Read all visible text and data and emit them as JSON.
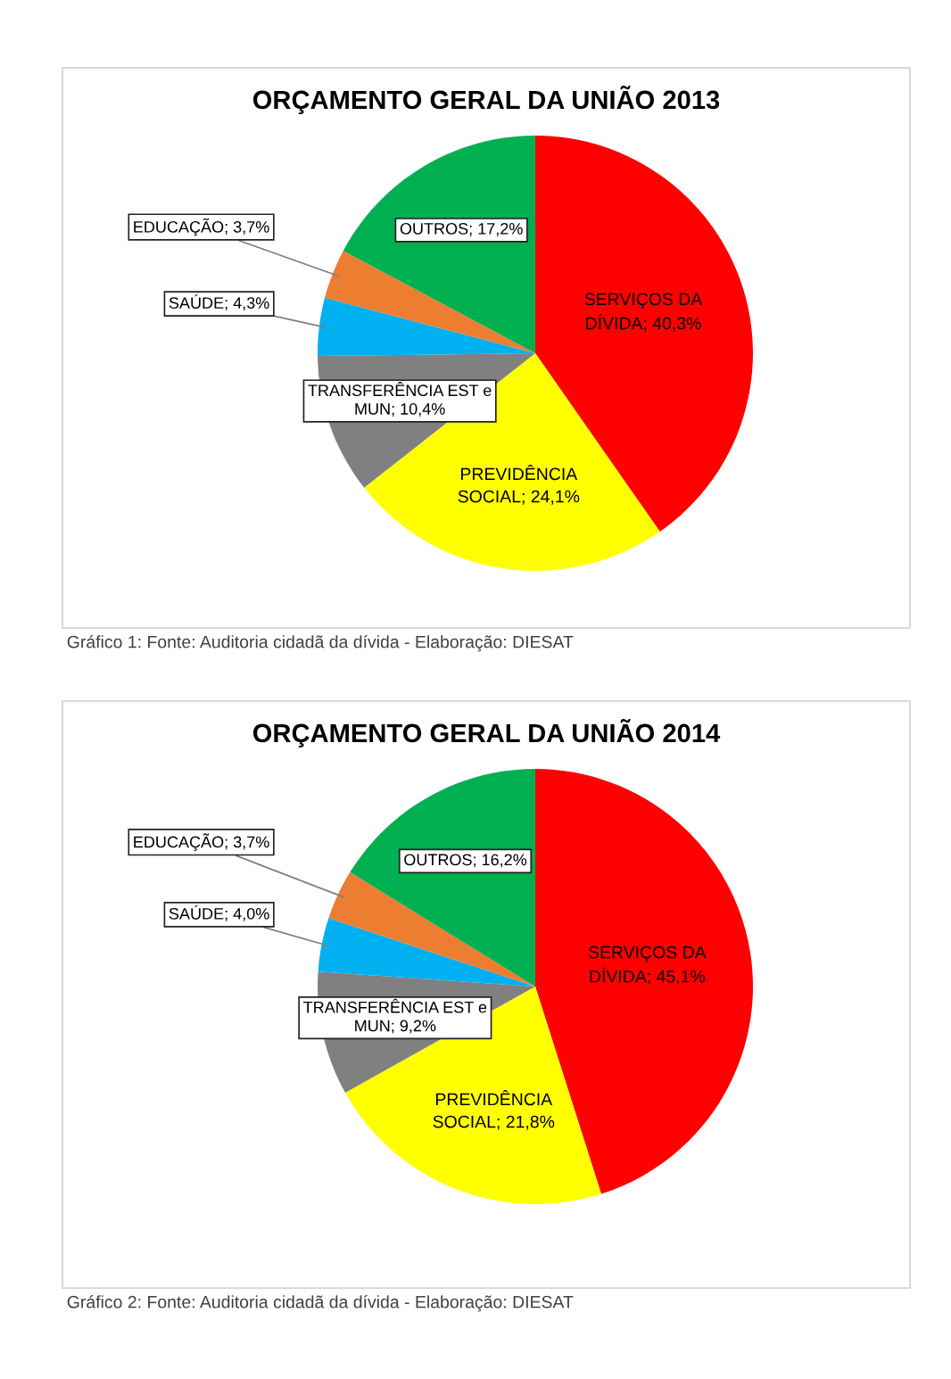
{
  "chart_data": [
    {
      "type": "pie",
      "title": "ORÇAMENTO GERAL DA UNIÃO 2013",
      "categories": [
        "SERVIÇOS DA DÍVIDA",
        "PREVIDÊNCIA SOCIAL",
        "TRANSFERÊNCIA EST e MUN",
        "SAÚDE",
        "EDUCAÇÃO",
        "OUTROS"
      ],
      "values": [
        40.3,
        24.1,
        10.4,
        4.3,
        3.7,
        17.2
      ],
      "colors": [
        "#ff0000",
        "#ffff00",
        "#808080",
        "#00b0f0",
        "#ed7d31",
        "#00b050"
      ],
      "value_labels": [
        "40,3%",
        "24,1%",
        "10,4%",
        "4,3%",
        "3,7%",
        "17,2%"
      ],
      "annotations": [
        "Gráfico 1: Fonte: Auditoria cidadã da dívida - Elaboração: DIESAT"
      ]
    },
    {
      "type": "pie",
      "title": "ORÇAMENTO GERAL DA UNIÃO 2014",
      "categories": [
        "SERVIÇOS DA DÍVIDA",
        "PREVIDÊNCIA SOCIAL",
        "TRANSFERÊNCIA EST e MUN",
        "SAÚDE",
        "EDUCAÇÃO",
        "OUTROS"
      ],
      "values": [
        45.1,
        21.8,
        9.2,
        4.0,
        3.7,
        16.2
      ],
      "colors": [
        "#ff0000",
        "#ffff00",
        "#808080",
        "#00b0f0",
        "#ed7d31",
        "#00b050"
      ],
      "value_labels": [
        "45,1%",
        "21,8%",
        "9,2%",
        "4,0%",
        "3,7%",
        "16,2%"
      ],
      "annotations": [
        "Gráfico 2: Fonte: Auditoria cidadã da dívida - Elaboração: DIESAT"
      ]
    }
  ]
}
